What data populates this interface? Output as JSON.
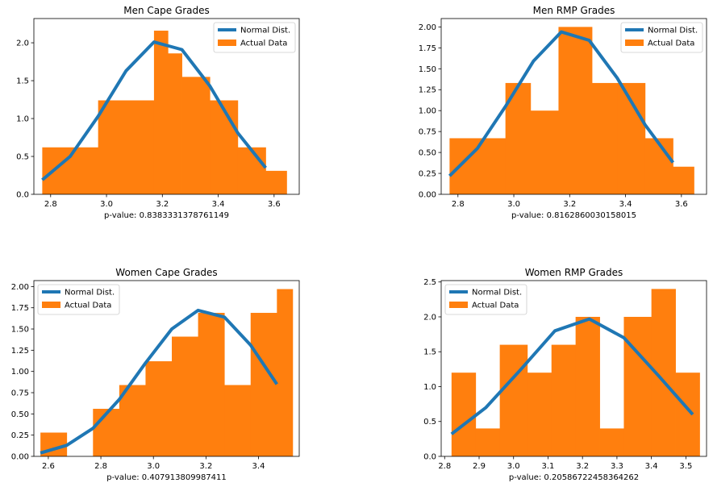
{
  "colors": {
    "normal": "#1f77b4",
    "actual": "#ff7f0e"
  },
  "legend": {
    "normal_label": "Normal Dist.",
    "actual_label": "Actual Data"
  },
  "chart_data": [
    {
      "type": "bar",
      "title": "Men Cape Grades",
      "xlabel": "p-value: 0.8383331378761149",
      "xlim": [
        2.74,
        3.69
      ],
      "ylim": [
        0,
        2.32
      ],
      "xticks": [
        2.8,
        3.0,
        3.2,
        3.4,
        3.6
      ],
      "xtick_labels": [
        "2.8",
        "3.0",
        "3.2",
        "3.4",
        "3.6"
      ],
      "yticks": [
        0,
        0.5,
        1.0,
        1.5,
        2.0
      ],
      "ytick_labels": [
        "0.0",
        "0.5",
        "1.0",
        "1.5",
        "2.0"
      ],
      "legend_position": "upper right",
      "series": [
        {
          "name": "Actual Data",
          "kind": "histogram",
          "bin_edges": [
            2.77,
            2.97,
            3.07,
            3.17,
            3.22,
            3.27,
            3.37,
            3.47,
            3.57,
            3.645
          ],
          "values": [
            0.62,
            1.24,
            1.24,
            2.16,
            1.86,
            1.55,
            1.24,
            0.62,
            0.31
          ]
        },
        {
          "name": "Normal Dist.",
          "kind": "line",
          "x": [
            2.77,
            2.87,
            2.97,
            3.07,
            3.17,
            3.27,
            3.37,
            3.47,
            3.57
          ],
          "y": [
            0.19,
            0.5,
            1.03,
            1.63,
            2.01,
            1.91,
            1.43,
            0.81,
            0.35
          ]
        }
      ]
    },
    {
      "type": "bar",
      "title": "Men RMP Grades",
      "xlabel": "p-value: 0.8162860030158015",
      "xlim": [
        2.74,
        3.69
      ],
      "ylim": [
        0,
        2.1
      ],
      "xticks": [
        2.8,
        3.0,
        3.2,
        3.4,
        3.6
      ],
      "xtick_labels": [
        "2.8",
        "3.0",
        "3.2",
        "3.4",
        "3.6"
      ],
      "yticks": [
        0,
        0.25,
        0.5,
        0.75,
        1.0,
        1.25,
        1.5,
        1.75,
        2.0
      ],
      "ytick_labels": [
        "0.00",
        "0.25",
        "0.50",
        "0.75",
        "1.00",
        "1.25",
        "1.50",
        "1.75",
        "2.00"
      ],
      "legend_position": "upper right",
      "series": [
        {
          "name": "Actual Data",
          "kind": "histogram",
          "bin_edges": [
            2.77,
            2.97,
            3.06,
            3.16,
            3.28,
            3.37,
            3.47,
            3.57,
            3.645
          ],
          "values": [
            0.67,
            1.33,
            1.0,
            2.0,
            1.33,
            1.33,
            0.67,
            0.33
          ]
        },
        {
          "name": "Normal Dist.",
          "kind": "line",
          "x": [
            2.77,
            2.87,
            2.97,
            3.07,
            3.17,
            3.27,
            3.37,
            3.47,
            3.57
          ],
          "y": [
            0.22,
            0.55,
            1.05,
            1.59,
            1.94,
            1.84,
            1.39,
            0.83,
            0.38
          ]
        }
      ]
    },
    {
      "type": "bar",
      "title": "Women Cape Grades",
      "xlabel": "p-value: 0.407913809987411",
      "xlim": [
        2.545,
        3.555
      ],
      "ylim": [
        0,
        2.07
      ],
      "xticks": [
        2.6,
        2.8,
        3.0,
        3.2,
        3.4
      ],
      "xtick_labels": [
        "2.6",
        "2.8",
        "3.0",
        "3.2",
        "3.4"
      ],
      "yticks": [
        0,
        0.25,
        0.5,
        0.75,
        1.0,
        1.25,
        1.5,
        1.75,
        2.0
      ],
      "ytick_labels": [
        "0.00",
        "0.25",
        "0.50",
        "0.75",
        "1.00",
        "1.25",
        "1.50",
        "1.75",
        "2.00"
      ],
      "legend_position": "upper left",
      "series": [
        {
          "name": "Actual Data",
          "kind": "histogram",
          "bin_edges": [
            2.57,
            2.67,
            2.77,
            2.87,
            2.97,
            3.07,
            3.17,
            3.27,
            3.37,
            3.47,
            3.53
          ],
          "values": [
            0.28,
            0,
            0.56,
            0.84,
            1.12,
            1.41,
            1.69,
            0.84,
            1.69,
            1.97
          ]
        },
        {
          "name": "Normal Dist.",
          "kind": "line",
          "x": [
            2.57,
            2.67,
            2.77,
            2.87,
            2.97,
            3.07,
            3.17,
            3.27,
            3.37,
            3.47
          ],
          "y": [
            0.04,
            0.13,
            0.33,
            0.67,
            1.1,
            1.5,
            1.72,
            1.64,
            1.31,
            0.85
          ]
        }
      ]
    },
    {
      "type": "bar",
      "title": "Women RMP Grades",
      "xlabel": "p-value: 0.20586722458364262",
      "xlim": [
        2.79,
        3.56
      ],
      "ylim": [
        0,
        2.52
      ],
      "xticks": [
        2.8,
        2.9,
        3.0,
        3.1,
        3.2,
        3.3,
        3.4,
        3.5
      ],
      "xtick_labels": [
        "2.8",
        "2.9",
        "3.0",
        "3.1",
        "3.2",
        "3.3",
        "3.4",
        "3.5"
      ],
      "yticks": [
        0,
        0.5,
        1.0,
        1.5,
        2.0,
        2.5
      ],
      "ytick_labels": [
        "0.0",
        "0.5",
        "1.0",
        "1.5",
        "2.0",
        "2.5"
      ],
      "legend_position": "upper left",
      "series": [
        {
          "name": "Actual Data",
          "kind": "histogram",
          "bin_edges": [
            2.82,
            2.89,
            2.96,
            3.04,
            3.11,
            3.18,
            3.25,
            3.32,
            3.4,
            3.47,
            3.54
          ],
          "values": [
            1.2,
            0.4,
            1.6,
            1.2,
            1.6,
            2.0,
            0.4,
            2.0,
            2.4,
            1.2
          ]
        },
        {
          "name": "Normal Dist.",
          "kind": "line",
          "x": [
            2.82,
            2.92,
            3.02,
            3.12,
            3.22,
            3.32,
            3.42,
            3.52
          ],
          "y": [
            0.32,
            0.7,
            1.24,
            1.8,
            1.97,
            1.7,
            1.16,
            0.6
          ]
        }
      ]
    }
  ]
}
